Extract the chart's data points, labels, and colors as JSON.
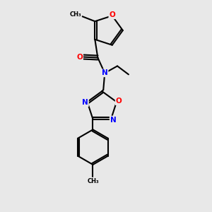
{
  "background_color": "#e8e8e8",
  "atom_colors": {
    "O": "#ff0000",
    "N": "#0000ff",
    "C": "#000000"
  },
  "bond_color": "#000000",
  "bond_width": 1.5,
  "figsize": [
    3.0,
    3.0
  ],
  "dpi": 100
}
